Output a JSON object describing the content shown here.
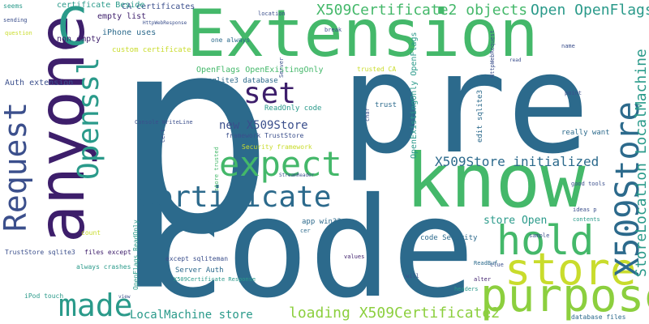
{
  "colors": {
    "background": "#ffffff",
    "dark_blue": "#2c6a8c",
    "purple": "#3d1e6b",
    "teal": "#2a9a8a",
    "green": "#44b86a",
    "lime": "#8ccf3e",
    "yellow": "#c9dc2c",
    "navy": "#3b4f8c"
  },
  "words": {
    "p": "p",
    "pre": "pre",
    "code": "code",
    "extension": "Extension",
    "know": "know",
    "anyone": "anyone",
    "c": "C",
    "purpose": "purpose",
    "store": "store",
    "hold": "hold",
    "made": "made",
    "certificate": "certificate",
    "expect": "expect",
    "set": "set",
    "request": "Request",
    "openssl": "Openssl",
    "x509store_big": "X509Store",
    "storelocation_localmachine": "StoreLocation LocalMachine",
    "x509certificate2_objects": "X509Certificate2 objects",
    "open_openflags": "Open OpenFlags",
    "x509store_initialized": "X509Store initialized",
    "loading_x509certificate2": "loading X509Certificate2",
    "localmachine_store": "LocalMachine store",
    "new_x509store": "new X509Store",
    "store_open": "store Open",
    "ca_certificates": "CA certificates",
    "certificate_beside": "certificate Beside",
    "empty_list": "empty list",
    "non_empty": "non empty",
    "iphone_uses": "iPhone uses",
    "auth_extension": "Auth extension",
    "custom_certificate": "custom certificate",
    "openflags_openexistingonly": "OpenFlags OpenExistingOnly",
    "sqlite3_database": "sqlite3 database",
    "readonly_code": "ReadOnly code",
    "framework_truststore": "framework TrustStore",
    "security_framework": "Security framework",
    "console_writeline": "Console WriteLine",
    "trusted_ca": "trusted CA",
    "trust": "trust",
    "openexistingonly_openflags": "OpenExistingOnly OpenFlags",
    "edit_sqlite3": "edit sqlite3",
    "really_want": "really want",
    "code_security": "code Security",
    "app_win32": "app win32",
    "server_auth": "Server Auth",
    "files_except": "files except",
    "except_sqliteman": "except sqliteman",
    "always_crashes": "always crashes",
    "truststore_sqlite3": "TrustStore sqlite3",
    "ipod_touch": "iPod touch",
    "database_files": "database files",
    "good_tools": "good tools",
    "ideas_p": "ideas p",
    "contents": "contents",
    "sample": "sample",
    "clue": "clue",
    "alter": "alter",
    "readbuf": "ReadBuf",
    "headers": "headers",
    "values": "values",
    "openflags_readonly": "OpenFlags ReadOnly",
    "store_trusted": "store trusted",
    "count": "count",
    "seems": "seems",
    "sending": "sending",
    "question": "question",
    "one_always": "one always",
    "location": "location",
    "break": "break",
    "name": "name",
    "httpwebrequest": "HttpWebRequest",
    "server": "Server",
    "x509certificate_response": "X509Certificate Response",
    "will": "will",
    "cer": "cer",
    "point": "point",
    "char": "char",
    "cert": "Cert",
    "streamreader": "StreamReader",
    "httpwebresponse": "HttpWebResponse",
    "view": "view",
    "read": "read"
  }
}
